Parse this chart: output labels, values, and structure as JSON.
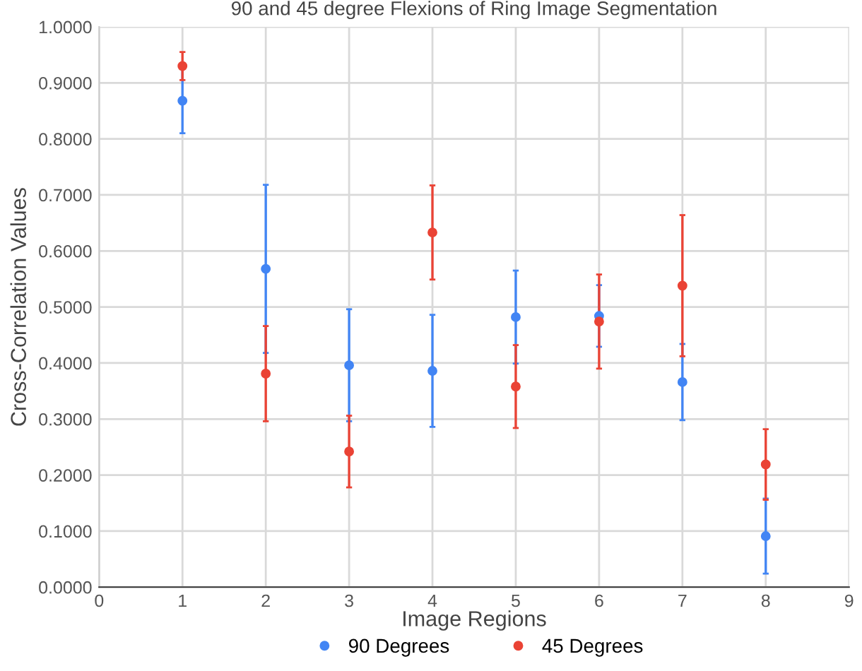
{
  "chart_data": {
    "type": "scatter",
    "title": "90 and 45 degree Flexions of Ring Image Segmentation",
    "xlabel": "Image Regions",
    "ylabel": "Cross-Correlation Values",
    "x": [
      1,
      2,
      3,
      4,
      5,
      6,
      7,
      8
    ],
    "series": [
      {
        "name": "90 Degrees",
        "color": "#4285f4",
        "values": [
          0.868,
          0.568,
          0.396,
          0.386,
          0.482,
          0.484,
          0.366,
          0.091
        ],
        "errors": [
          0.058,
          0.15,
          0.1,
          0.1,
          0.083,
          0.055,
          0.068,
          0.067
        ]
      },
      {
        "name": "45 Degrees",
        "color": "#ea4335",
        "values": [
          0.93,
          0.381,
          0.242,
          0.633,
          0.358,
          0.474,
          0.538,
          0.219
        ],
        "errors": [
          0.025,
          0.085,
          0.064,
          0.084,
          0.074,
          0.084,
          0.126,
          0.063
        ]
      }
    ],
    "xlim": [
      0,
      9
    ],
    "xticks": [
      0,
      1,
      2,
      3,
      4,
      5,
      6,
      7,
      8,
      9
    ],
    "ylim": [
      0,
      1
    ],
    "yticks": [
      {
        "value": 0,
        "label": "0.0000"
      },
      {
        "value": 0.1,
        "label": "0.1000"
      },
      {
        "value": 0.2,
        "label": "0.2000"
      },
      {
        "value": 0.3,
        "label": "0.3000"
      },
      {
        "value": 0.4,
        "label": "0.4000"
      },
      {
        "value": 0.5,
        "label": "0.5000"
      },
      {
        "value": 0.6,
        "label": "0.6000"
      },
      {
        "value": 0.7,
        "label": "0.7000"
      },
      {
        "value": 0.8,
        "label": "0.8000"
      },
      {
        "value": 0.9,
        "label": "0.9000"
      },
      {
        "value": 1,
        "label": "1.0000"
      }
    ],
    "grid": true,
    "legend": "bottom",
    "marker": "circle"
  }
}
